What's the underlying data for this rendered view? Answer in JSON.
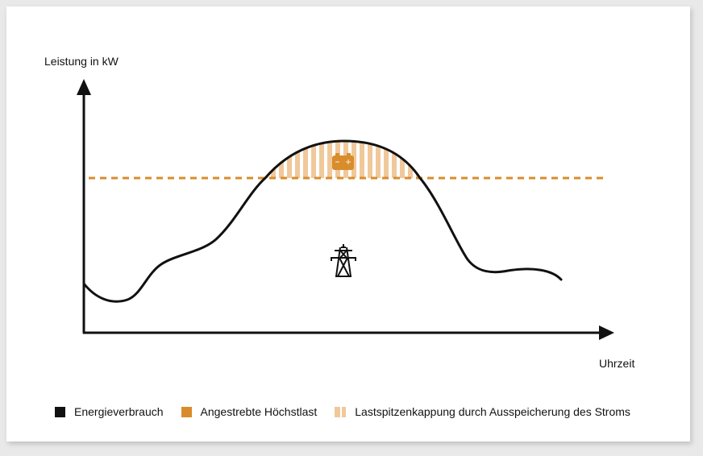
{
  "axes": {
    "y_label": "Leistung in kW",
    "x_label": "Uhrzeit"
  },
  "colors": {
    "consumption": "#111111",
    "target_peak": "#d98c2b",
    "peak_shaving": "#f0c89a",
    "battery": "#d98c2b"
  },
  "icons": {
    "battery": "battery-icon",
    "power_pylon": "power-pylon-icon"
  },
  "legend": [
    {
      "label": "Energieverbrauch",
      "swatch": "solid-black"
    },
    {
      "label": "Angestrebte Höchstlast",
      "swatch": "solid-orange"
    },
    {
      "label": "Lastspitzenkappung durch Ausspeicherung des Stroms",
      "swatch": "striped-orange"
    }
  ]
}
